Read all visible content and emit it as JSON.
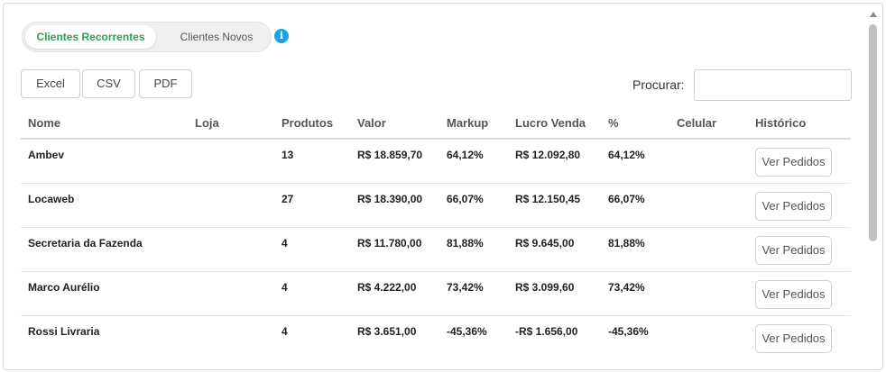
{
  "tabs": [
    {
      "label": "Clientes Recorrentes",
      "active": true
    },
    {
      "label": "Clientes Novos",
      "active": false
    }
  ],
  "info_icon": {
    "name": "info-icon",
    "glyph": "i",
    "color": "#1aa4e0"
  },
  "export_buttons": {
    "excel": "Excel",
    "csv": "CSV",
    "pdf": "PDF"
  },
  "search": {
    "label": "Procurar:",
    "value": ""
  },
  "table": {
    "headers": {
      "nome": "Nome",
      "loja": "Loja",
      "produtos": "Produtos",
      "valor": "Valor",
      "markup": "Markup",
      "lucro": "Lucro Venda",
      "pct": "%",
      "celular": "Celular",
      "historico": "Histórico"
    },
    "rows": [
      {
        "nome": "Ambev",
        "loja": "",
        "produtos": "13",
        "valor": "R$ 18.859,70",
        "markup": "64,12%",
        "lucro": "R$ 12.092,80",
        "pct": "64,12%",
        "celular": "",
        "action": "Ver Pedidos"
      },
      {
        "nome": "Locaweb",
        "loja": "",
        "produtos": "27",
        "valor": "R$ 18.390,00",
        "markup": "66,07%",
        "lucro": "R$ 12.150,45",
        "pct": "66,07%",
        "celular": "",
        "action": "Ver Pedidos"
      },
      {
        "nome": "Secretaria da Fazenda",
        "loja": "",
        "produtos": "4",
        "valor": "R$ 11.780,00",
        "markup": "81,88%",
        "lucro": "R$ 9.645,00",
        "pct": "81,88%",
        "celular": "",
        "action": "Ver Pedidos"
      },
      {
        "nome": "Marco Aurélio",
        "loja": "",
        "produtos": "4",
        "valor": "R$ 4.222,00",
        "markup": "73,42%",
        "lucro": "R$ 3.099,60",
        "pct": "73,42%",
        "celular": "",
        "action": "Ver Pedidos"
      },
      {
        "nome": "Rossi Livraria",
        "loja": "",
        "produtos": "4",
        "valor": "R$ 3.651,00",
        "markup": "-45,36%",
        "lucro": "-R$ 1.656,00",
        "pct": "-45,36%",
        "celular": "",
        "action": "Ver Pedidos"
      }
    ]
  },
  "colors": {
    "accent_green": "#2e9e4f",
    "info_blue": "#1aa4e0"
  }
}
